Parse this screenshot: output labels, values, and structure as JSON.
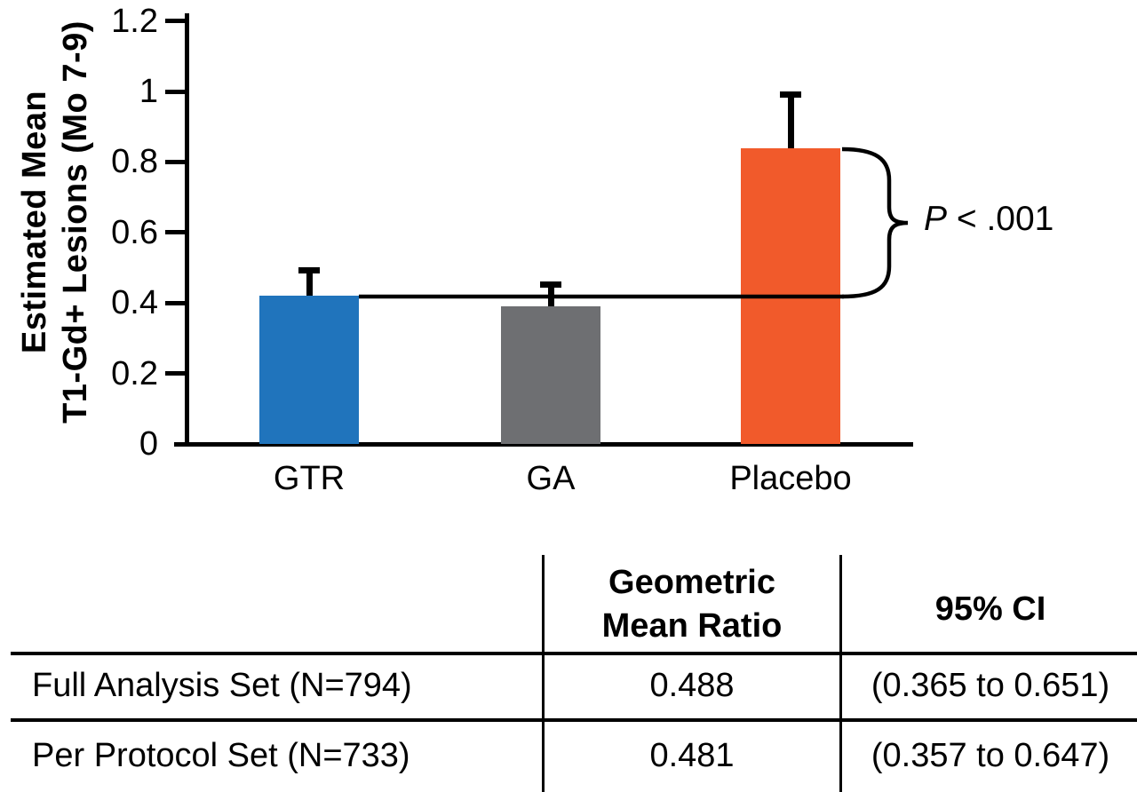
{
  "figure": {
    "ylabel_line1": "Estimated Mean",
    "ylabel_line2": "T1-Gd+ Lesions (Mo 7-9)",
    "p_var": "P",
    "p_rest": " < .001"
  },
  "chart_data": {
    "type": "bar",
    "title": "",
    "categories": [
      "GTR",
      "GA",
      "Placebo"
    ],
    "values": [
      0.42,
      0.39,
      0.84
    ],
    "error_upper": [
      0.49,
      0.45,
      0.99
    ],
    "bar_colors": [
      "#2074BC",
      "#6E6F72",
      "#F15A2B"
    ],
    "xlabel": "",
    "ylabel": "Estimated Mean T1-Gd+ Lesions (Mo 7-9)",
    "ylim": [
      0,
      1.2
    ],
    "yticks": [
      0,
      0.2,
      0.4,
      0.6,
      0.8,
      1,
      1.2
    ],
    "grid": false,
    "legend": "none",
    "annotation": {
      "text": "P < .001",
      "between": [
        "GTR",
        "Placebo"
      ]
    }
  },
  "table": {
    "header_gmr_line1": "Geometric",
    "header_gmr_line2": "Mean Ratio",
    "header_ci": "95% CI",
    "rows": [
      {
        "label": "Full Analysis Set (N=794)",
        "geometric_mean_ratio": "0.488",
        "ci_95": "(0.365 to 0.651)"
      },
      {
        "label": "Per Protocol Set (N=733)",
        "geometric_mean_ratio": "0.481",
        "ci_95": "(0.357 to 0.647)"
      }
    ]
  }
}
